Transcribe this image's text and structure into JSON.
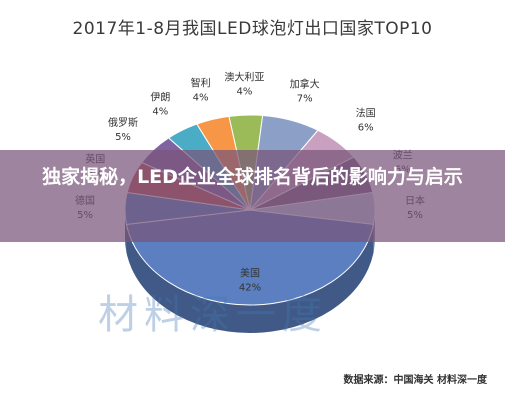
{
  "chart_data": {
    "type": "pie",
    "title": "2017年1-8月我国LED球泡灯出口国家TOP10",
    "categories": [
      "美国",
      "德国",
      "英国",
      "俄罗斯",
      "伊朗",
      "智利",
      "澳大利亚",
      "加拿大",
      "法国",
      "波兰",
      "日本"
    ],
    "values": [
      42,
      5,
      5,
      5,
      4,
      4,
      4,
      7,
      6,
      6,
      5
    ],
    "labels": [
      "42%",
      "5%",
      "5%",
      "5%",
      "4%",
      "4%",
      "4%",
      "7%",
      "6%",
      "6%",
      "5%"
    ],
    "colors": [
      "#5b7fc0",
      "#4f86c6",
      "#c0504d",
      "#8064a2",
      "#4bacc6",
      "#f79646",
      "#9bbb59",
      "#8c9fc7",
      "#c9a0c0",
      "#7f6084",
      "#bfd0e6"
    ],
    "style": "3d"
  },
  "banner": {
    "text": "独家揭秘，LED企业全球排名背后的影响力与启示"
  },
  "watermark": {
    "text": "材料深一度"
  },
  "source": {
    "text": "数据来源：中国海关 材料深一度"
  }
}
